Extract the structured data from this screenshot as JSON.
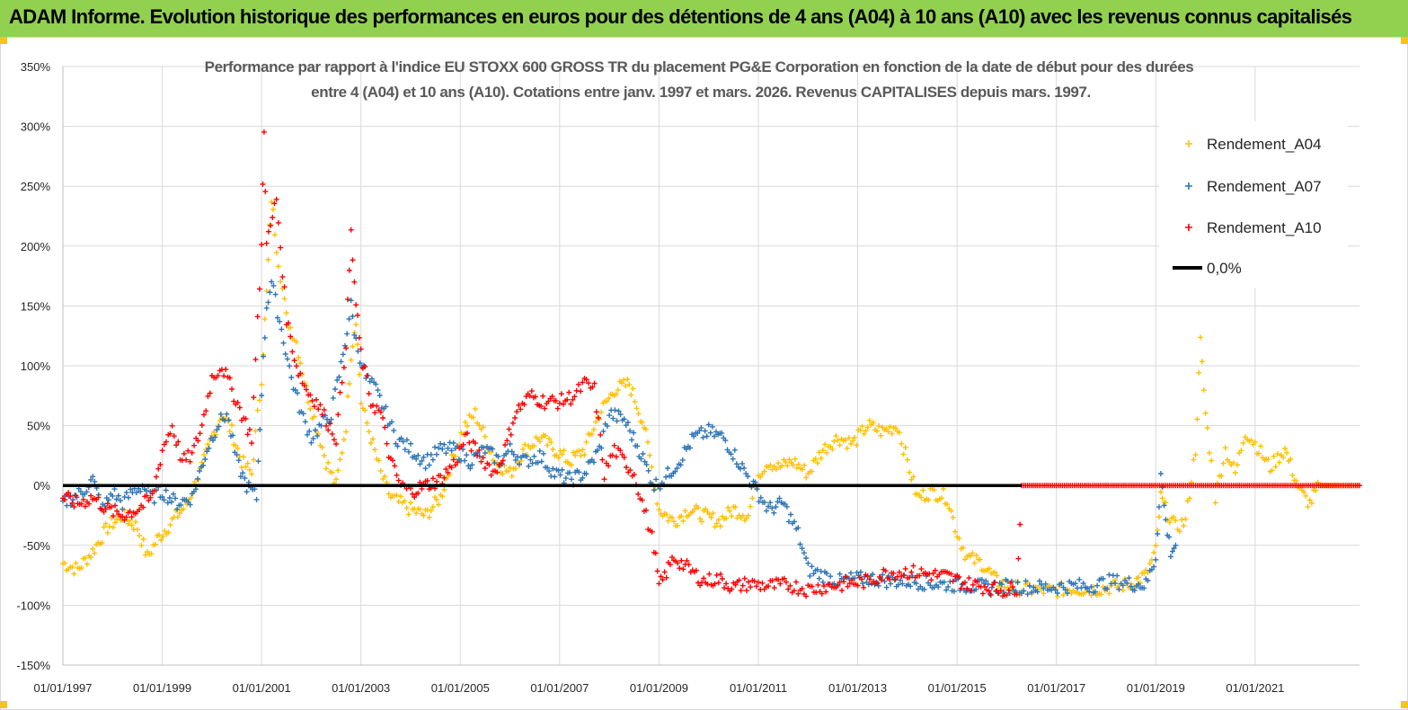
{
  "banner": {
    "title": "ADAM Informe. Evolution historique des performances en euros pour des détentions de 4 ans (A04) à 10 ans (A10) avec les revenus connus capitalisés",
    "color": "#92d050"
  },
  "chart_data": {
    "type": "scatter",
    "title_line1": "Performance par rapport à l'indice EU STOXX 600 GROSS TR  du placement PG&E Corporation en fonction de la date de début pour des durées",
    "title_line2": "entre 4 (A04) et 10 ans (A10). Cotations entre janv. 1997 et mars. 2026. Revenus CAPITALISES depuis mars. 1997.",
    "xlabel": "",
    "ylabel": "",
    "ylim": [
      -150,
      350
    ],
    "xlim": [
      1997.0,
      2023.1
    ],
    "y_ticks": [
      -150,
      -100,
      -50,
      0,
      50,
      100,
      150,
      200,
      250,
      300,
      350
    ],
    "y_tick_labels": [
      "-150%",
      "-100%",
      "-50%",
      "0%",
      "50%",
      "100%",
      "150%",
      "200%",
      "250%",
      "300%",
      "350%"
    ],
    "x_ticks": [
      1997,
      1999,
      2001,
      2003,
      2005,
      2007,
      2009,
      2011,
      2013,
      2015,
      2017,
      2019,
      2021
    ],
    "x_tick_labels": [
      "01/01/1997",
      "01/01/1999",
      "01/01/2001",
      "01/01/2003",
      "01/01/2005",
      "01/01/2007",
      "01/01/2009",
      "01/01/2011",
      "01/01/2013",
      "01/01/2015",
      "01/01/2017",
      "01/01/2019",
      "01/01/2021"
    ],
    "grid": true,
    "legend_position": "top-right",
    "series": [
      {
        "name": "Rendement_A04",
        "color": "#ffc000",
        "marker": "+",
        "points": [
          [
            1997.0,
            -65
          ],
          [
            1997.3,
            -70
          ],
          [
            1997.6,
            -55
          ],
          [
            1997.9,
            -35
          ],
          [
            1998.2,
            -25
          ],
          [
            1998.5,
            -35
          ],
          [
            1998.7,
            -60
          ],
          [
            1998.9,
            -45
          ],
          [
            1999.2,
            -30
          ],
          [
            1999.5,
            -15
          ],
          [
            1999.8,
            15
          ],
          [
            2000.0,
            40
          ],
          [
            2000.2,
            60
          ],
          [
            2000.4,
            45
          ],
          [
            2000.6,
            20
          ],
          [
            2000.8,
            10
          ],
          [
            2001.0,
            90
          ],
          [
            2001.1,
            160
          ],
          [
            2001.2,
            240
          ],
          [
            2001.3,
            200
          ],
          [
            2001.5,
            140
          ],
          [
            2001.7,
            120
          ],
          [
            2001.9,
            80
          ],
          [
            2002.1,
            50
          ],
          [
            2002.3,
            20
          ],
          [
            2002.5,
            0
          ],
          [
            2002.7,
            50
          ],
          [
            2002.8,
            110
          ],
          [
            2002.9,
            140
          ],
          [
            2003.0,
            70
          ],
          [
            2003.2,
            40
          ],
          [
            2003.4,
            10
          ],
          [
            2003.6,
            -10
          ],
          [
            2003.8,
            -15
          ],
          [
            2004.0,
            -20
          ],
          [
            2004.3,
            -25
          ],
          [
            2004.6,
            -10
          ],
          [
            2004.9,
            30
          ],
          [
            2005.1,
            50
          ],
          [
            2005.3,
            60
          ],
          [
            2005.5,
            40
          ],
          [
            2005.7,
            20
          ],
          [
            2006.0,
            10
          ],
          [
            2006.3,
            30
          ],
          [
            2006.6,
            40
          ],
          [
            2006.9,
            30
          ],
          [
            2007.2,
            20
          ],
          [
            2007.5,
            30
          ],
          [
            2007.8,
            60
          ],
          [
            2008.1,
            80
          ],
          [
            2008.4,
            85
          ],
          [
            2008.7,
            50
          ],
          [
            2009.0,
            -20
          ],
          [
            2009.3,
            -30
          ],
          [
            2009.6,
            -20
          ],
          [
            2009.9,
            -25
          ],
          [
            2010.2,
            -30
          ],
          [
            2010.5,
            -20
          ],
          [
            2010.8,
            -25
          ],
          [
            2011.0,
            10
          ],
          [
            2011.2,
            20
          ],
          [
            2011.4,
            15
          ],
          [
            2011.7,
            20
          ],
          [
            2012.0,
            10
          ],
          [
            2012.3,
            30
          ],
          [
            2012.6,
            40
          ],
          [
            2012.9,
            35
          ],
          [
            2013.2,
            50
          ],
          [
            2013.5,
            45
          ],
          [
            2013.8,
            50
          ],
          [
            2014.0,
            20
          ],
          [
            2014.2,
            -10
          ],
          [
            2014.5,
            -5
          ],
          [
            2014.8,
            -10
          ],
          [
            2015.0,
            -40
          ],
          [
            2015.2,
            -60
          ],
          [
            2015.5,
            -65
          ],
          [
            2015.8,
            -80
          ],
          [
            2016.1,
            -85
          ],
          [
            2016.5,
            -87
          ],
          [
            2016.9,
            -88
          ],
          [
            2017.3,
            -86
          ],
          [
            2017.7,
            -87
          ],
          [
            2018.1,
            -85
          ],
          [
            2018.5,
            -82
          ],
          [
            2018.8,
            -75
          ],
          [
            2019.0,
            -55
          ],
          [
            2019.1,
            -10
          ],
          [
            2019.2,
            -20
          ],
          [
            2019.4,
            -35
          ],
          [
            2019.6,
            -30
          ],
          [
            2019.8,
            30
          ],
          [
            2019.9,
            120
          ],
          [
            2020.0,
            60
          ],
          [
            2020.2,
            -10
          ],
          [
            2020.4,
            30
          ],
          [
            2020.6,
            10
          ],
          [
            2020.8,
            45
          ],
          [
            2021.0,
            35
          ],
          [
            2021.3,
            15
          ],
          [
            2021.6,
            30
          ],
          [
            2021.9,
            -5
          ],
          [
            2022.1,
            -15
          ],
          [
            2022.3,
            0
          ],
          [
            2022.6,
            0
          ],
          [
            2022.9,
            0
          ],
          [
            2023.1,
            0
          ]
        ]
      },
      {
        "name": "Rendement_A07",
        "color": "#2e75b6",
        "marker": "+",
        "points": [
          [
            1997.0,
            -15
          ],
          [
            1997.2,
            -10
          ],
          [
            1997.4,
            -5
          ],
          [
            1997.6,
            5
          ],
          [
            1997.8,
            -20
          ],
          [
            1998.0,
            -5
          ],
          [
            1998.2,
            -15
          ],
          [
            1998.4,
            -5
          ],
          [
            1998.6,
            0
          ],
          [
            1998.8,
            -10
          ],
          [
            1999.0,
            -5
          ],
          [
            1999.3,
            -15
          ],
          [
            1999.6,
            -10
          ],
          [
            1999.9,
            30
          ],
          [
            2000.1,
            50
          ],
          [
            2000.3,
            60
          ],
          [
            2000.5,
            20
          ],
          [
            2000.7,
            0
          ],
          [
            2000.9,
            -10
          ],
          [
            2001.0,
            80
          ],
          [
            2001.1,
            150
          ],
          [
            2001.2,
            170
          ],
          [
            2001.4,
            130
          ],
          [
            2001.6,
            90
          ],
          [
            2001.8,
            60
          ],
          [
            2002.0,
            40
          ],
          [
            2002.2,
            50
          ],
          [
            2002.4,
            60
          ],
          [
            2002.6,
            100
          ],
          [
            2002.8,
            150
          ],
          [
            2002.9,
            120
          ],
          [
            2003.1,
            90
          ],
          [
            2003.3,
            80
          ],
          [
            2003.5,
            60
          ],
          [
            2003.7,
            40
          ],
          [
            2004.0,
            30
          ],
          [
            2004.3,
            20
          ],
          [
            2004.6,
            30
          ],
          [
            2004.9,
            30
          ],
          [
            2005.2,
            20
          ],
          [
            2005.5,
            30
          ],
          [
            2005.8,
            20
          ],
          [
            2006.0,
            30
          ],
          [
            2006.3,
            20
          ],
          [
            2006.6,
            25
          ],
          [
            2006.9,
            10
          ],
          [
            2007.2,
            5
          ],
          [
            2007.5,
            10
          ],
          [
            2007.8,
            30
          ],
          [
            2008.0,
            60
          ],
          [
            2008.3,
            55
          ],
          [
            2008.6,
            30
          ],
          [
            2008.9,
            0
          ],
          [
            2009.1,
            5
          ],
          [
            2009.4,
            20
          ],
          [
            2009.7,
            40
          ],
          [
            2010.0,
            45
          ],
          [
            2010.3,
            40
          ],
          [
            2010.6,
            20
          ],
          [
            2010.9,
            0
          ],
          [
            2011.2,
            -20
          ],
          [
            2011.5,
            -15
          ],
          [
            2011.8,
            -40
          ],
          [
            2012.0,
            -70
          ],
          [
            2012.3,
            -75
          ],
          [
            2012.6,
            -80
          ],
          [
            2012.9,
            -78
          ],
          [
            2013.3,
            -78
          ],
          [
            2013.7,
            -80
          ],
          [
            2014.1,
            -80
          ],
          [
            2014.5,
            -82
          ],
          [
            2014.9,
            -83
          ],
          [
            2015.3,
            -84
          ],
          [
            2015.7,
            -85
          ],
          [
            2016.1,
            -84
          ],
          [
            2016.5,
            -85
          ],
          [
            2016.9,
            -85
          ],
          [
            2017.3,
            -84
          ],
          [
            2017.7,
            -84
          ],
          [
            2018.1,
            -80
          ],
          [
            2018.5,
            -82
          ],
          [
            2018.8,
            -83
          ],
          [
            2019.0,
            -60
          ],
          [
            2019.1,
            10
          ],
          [
            2019.2,
            -30
          ],
          [
            2019.3,
            -55
          ],
          [
            2019.4,
            -50
          ]
        ]
      },
      {
        "name": "Rendement_A10",
        "color": "#ff0000",
        "marker": "+",
        "points": [
          [
            1997.0,
            -10
          ],
          [
            1997.3,
            -15
          ],
          [
            1997.6,
            -10
          ],
          [
            1997.9,
            -20
          ],
          [
            1998.2,
            -25
          ],
          [
            1998.5,
            -20
          ],
          [
            1998.8,
            -10
          ],
          [
            1999.0,
            30
          ],
          [
            1999.2,
            50
          ],
          [
            1999.4,
            20
          ],
          [
            1999.6,
            25
          ],
          [
            1999.8,
            50
          ],
          [
            2000.0,
            90
          ],
          [
            2000.2,
            100
          ],
          [
            2000.4,
            80
          ],
          [
            2000.6,
            60
          ],
          [
            2000.8,
            40
          ],
          [
            2001.0,
            200
          ],
          [
            2001.05,
            300
          ],
          [
            2001.1,
            200
          ],
          [
            2001.3,
            240
          ],
          [
            2001.5,
            140
          ],
          [
            2001.7,
            100
          ],
          [
            2001.9,
            80
          ],
          [
            2002.1,
            70
          ],
          [
            2002.3,
            55
          ],
          [
            2002.5,
            40
          ],
          [
            2002.7,
            120
          ],
          [
            2002.8,
            210
          ],
          [
            2002.9,
            150
          ],
          [
            2003.0,
            110
          ],
          [
            2003.2,
            70
          ],
          [
            2003.4,
            60
          ],
          [
            2003.6,
            20
          ],
          [
            2003.8,
            0
          ],
          [
            2004.0,
            -5
          ],
          [
            2004.3,
            0
          ],
          [
            2004.6,
            5
          ],
          [
            2004.9,
            20
          ],
          [
            2005.1,
            40
          ],
          [
            2005.3,
            30
          ],
          [
            2005.5,
            20
          ],
          [
            2005.7,
            10
          ],
          [
            2005.9,
            30
          ],
          [
            2006.1,
            60
          ],
          [
            2006.4,
            75
          ],
          [
            2006.7,
            70
          ],
          [
            2007.0,
            70
          ],
          [
            2007.3,
            75
          ],
          [
            2007.5,
            85
          ],
          [
            2007.7,
            80
          ],
          [
            2007.9,
            10
          ],
          [
            2008.1,
            30
          ],
          [
            2008.3,
            20
          ],
          [
            2008.5,
            10
          ],
          [
            2008.9,
            -50
          ],
          [
            2009.0,
            -85
          ],
          [
            2009.3,
            -60
          ],
          [
            2009.6,
            -70
          ],
          [
            2009.9,
            -80
          ],
          [
            2010.2,
            -78
          ],
          [
            2010.5,
            -85
          ],
          [
            2010.8,
            -82
          ],
          [
            2011.2,
            -84
          ],
          [
            2011.6,
            -83
          ],
          [
            2012.0,
            -87
          ],
          [
            2012.4,
            -84
          ],
          [
            2012.8,
            -82
          ],
          [
            2013.2,
            -80
          ],
          [
            2013.6,
            -73
          ],
          [
            2014.0,
            -72
          ],
          [
            2014.4,
            -74
          ],
          [
            2014.8,
            -76
          ],
          [
            2015.2,
            -82
          ],
          [
            2015.6,
            -85
          ],
          [
            2016.0,
            -88
          ],
          [
            2016.2,
            -85
          ],
          [
            2016.3,
            0
          ],
          [
            2017.0,
            0
          ],
          [
            2018.0,
            0
          ],
          [
            2019.0,
            0
          ],
          [
            2020.0,
            0
          ],
          [
            2021.0,
            0
          ],
          [
            2022.0,
            0
          ],
          [
            2023.1,
            0
          ]
        ]
      },
      {
        "name": "0,0%",
        "color": "#000000",
        "marker": "line",
        "points": [
          [
            1997.0,
            0
          ],
          [
            2016.3,
            0
          ]
        ]
      }
    ]
  }
}
